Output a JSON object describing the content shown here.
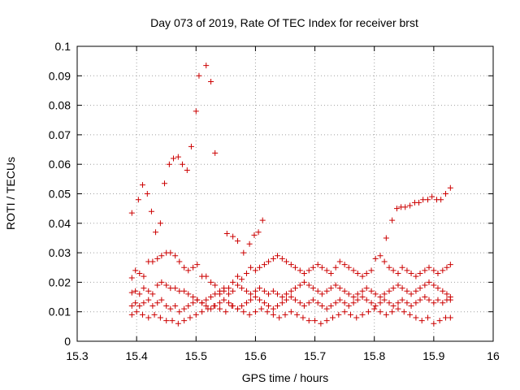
{
  "chart_data": {
    "type": "scatter",
    "title": "Day 073 of 2019, Rate Of TEC Index for receiver brst",
    "xlabel": "GPS time / hours",
    "ylabel": "ROTI / TECUs",
    "xlim": [
      15.3,
      16
    ],
    "ylim": [
      0,
      0.1
    ],
    "xticks": [
      "15.3",
      "15.4",
      "15.5",
      "15.6",
      "15.7",
      "15.8",
      "15.9",
      "16"
    ],
    "yticks": [
      "0",
      "0.01",
      "0.02",
      "0.03",
      "0.04",
      "0.05",
      "0.06",
      "0.07",
      "0.08",
      "0.09",
      "0.1"
    ],
    "grid": true,
    "marker": "plus",
    "color": "#cc0000",
    "series": [
      {
        "x": [
          15.392,
          15.403,
          15.41,
          15.418,
          15.425,
          15.432,
          15.44,
          15.447,
          15.455,
          15.462,
          15.47,
          15.477,
          15.485,
          15.492,
          15.5,
          15.505,
          15.517,
          15.525,
          15.532,
          15.552,
          15.562,
          15.57,
          15.58,
          15.59,
          15.598,
          15.605,
          15.612,
          15.82,
          15.83,
          15.838,
          15.845,
          15.852,
          15.86,
          15.868,
          15.875,
          15.882,
          15.89,
          15.897,
          15.905,
          15.912,
          15.92,
          15.928,
          15.392,
          15.398,
          15.405,
          15.412,
          15.42,
          15.427,
          15.435,
          15.442,
          15.45,
          15.457,
          15.465,
          15.472,
          15.48,
          15.487,
          15.495,
          15.502,
          15.51,
          15.517,
          15.525,
          15.532,
          15.54,
          15.547,
          15.555,
          15.562,
          15.57,
          15.577,
          15.585,
          15.592,
          15.6,
          15.607,
          15.615,
          15.622,
          15.63,
          15.637,
          15.645,
          15.652,
          15.66,
          15.667,
          15.675,
          15.682,
          15.69,
          15.697,
          15.705,
          15.712,
          15.72,
          15.727,
          15.735,
          15.742,
          15.75,
          15.757,
          15.765,
          15.772,
          15.78,
          15.787,
          15.795,
          15.802,
          15.81,
          15.817,
          15.825,
          15.832,
          15.84,
          15.847,
          15.855,
          15.862,
          15.87,
          15.877,
          15.885,
          15.892,
          15.9,
          15.907,
          15.915,
          15.922,
          15.928,
          15.392,
          15.398,
          15.405,
          15.412,
          15.42,
          15.427,
          15.435,
          15.442,
          15.45,
          15.457,
          15.465,
          15.472,
          15.48,
          15.487,
          15.495,
          15.502,
          15.51,
          15.517,
          15.525,
          15.532,
          15.54,
          15.547,
          15.555,
          15.562,
          15.57,
          15.577,
          15.585,
          15.592,
          15.6,
          15.607,
          15.615,
          15.622,
          15.63,
          15.637,
          15.645,
          15.652,
          15.66,
          15.667,
          15.675,
          15.682,
          15.69,
          15.697,
          15.705,
          15.712,
          15.72,
          15.727,
          15.735,
          15.742,
          15.75,
          15.757,
          15.765,
          15.772,
          15.78,
          15.787,
          15.795,
          15.802,
          15.81,
          15.817,
          15.825,
          15.832,
          15.84,
          15.847,
          15.855,
          15.862,
          15.87,
          15.877,
          15.885,
          15.892,
          15.9,
          15.907,
          15.915,
          15.922,
          15.928,
          15.392,
          15.398,
          15.405,
          15.412,
          15.42,
          15.427,
          15.435,
          15.442,
          15.45,
          15.457,
          15.465,
          15.472,
          15.48,
          15.487,
          15.495,
          15.502,
          15.51,
          15.517,
          15.525,
          15.532,
          15.54,
          15.547,
          15.555,
          15.562,
          15.57,
          15.577,
          15.585,
          15.592,
          15.6,
          15.607,
          15.615,
          15.622,
          15.63,
          15.637,
          15.645,
          15.652,
          15.66,
          15.667,
          15.675,
          15.682,
          15.69,
          15.697,
          15.705,
          15.712,
          15.72,
          15.727,
          15.735,
          15.742,
          15.75,
          15.757,
          15.765,
          15.772,
          15.78,
          15.787,
          15.795,
          15.802,
          15.81,
          15.817,
          15.825,
          15.832,
          15.84,
          15.847,
          15.855,
          15.862,
          15.87,
          15.877,
          15.885,
          15.892,
          15.9,
          15.907,
          15.915,
          15.922,
          15.928,
          15.392,
          15.4,
          15.41,
          15.42,
          15.43,
          15.44,
          15.45,
          15.46,
          15.47,
          15.48,
          15.49,
          15.5,
          15.51,
          15.52,
          15.53,
          15.54,
          15.55,
          15.56,
          15.57,
          15.58,
          15.59,
          15.6,
          15.61,
          15.62,
          15.63,
          15.64,
          15.65,
          15.66,
          15.67,
          15.68,
          15.69,
          15.7,
          15.71,
          15.72,
          15.73,
          15.74,
          15.75,
          15.76,
          15.77,
          15.78,
          15.79,
          15.8,
          15.81,
          15.82,
          15.83,
          15.84,
          15.85,
          15.86,
          15.87,
          15.88,
          15.89,
          15.9,
          15.91,
          15.92,
          15.928
        ],
        "y": [
          0.0435,
          0.048,
          0.053,
          0.05,
          0.044,
          0.037,
          0.04,
          0.0535,
          0.06,
          0.062,
          0.0625,
          0.06,
          0.058,
          0.066,
          0.078,
          0.09,
          0.0935,
          0.088,
          0.0638,
          0.0365,
          0.0355,
          0.034,
          0.03,
          0.033,
          0.036,
          0.037,
          0.041,
          0.035,
          0.041,
          0.045,
          0.0455,
          0.0455,
          0.046,
          0.047,
          0.047,
          0.048,
          0.048,
          0.049,
          0.048,
          0.048,
          0.05,
          0.052,
          0.0215,
          0.024,
          0.023,
          0.022,
          0.027,
          0.027,
          0.028,
          0.029,
          0.03,
          0.03,
          0.029,
          0.027,
          0.025,
          0.024,
          0.025,
          0.026,
          0.022,
          0.022,
          0.02,
          0.019,
          0.017,
          0.018,
          0.016,
          0.02,
          0.022,
          0.021,
          0.023,
          0.025,
          0.024,
          0.025,
          0.026,
          0.027,
          0.028,
          0.029,
          0.028,
          0.027,
          0.026,
          0.025,
          0.024,
          0.023,
          0.024,
          0.025,
          0.026,
          0.025,
          0.024,
          0.023,
          0.025,
          0.027,
          0.026,
          0.025,
          0.024,
          0.023,
          0.022,
          0.023,
          0.024,
          0.028,
          0.029,
          0.027,
          0.025,
          0.024,
          0.023,
          0.025,
          0.024,
          0.023,
          0.022,
          0.023,
          0.024,
          0.025,
          0.024,
          0.023,
          0.024,
          0.025,
          0.026,
          0.0165,
          0.017,
          0.016,
          0.018,
          0.017,
          0.016,
          0.019,
          0.02,
          0.019,
          0.018,
          0.018,
          0.017,
          0.017,
          0.016,
          0.015,
          0.014,
          0.013,
          0.014,
          0.015,
          0.016,
          0.016,
          0.017,
          0.018,
          0.017,
          0.019,
          0.018,
          0.017,
          0.016,
          0.017,
          0.018,
          0.017,
          0.016,
          0.017,
          0.016,
          0.015,
          0.016,
          0.017,
          0.018,
          0.019,
          0.02,
          0.019,
          0.018,
          0.017,
          0.016,
          0.017,
          0.018,
          0.019,
          0.018,
          0.017,
          0.016,
          0.015,
          0.016,
          0.017,
          0.018,
          0.017,
          0.016,
          0.015,
          0.016,
          0.017,
          0.018,
          0.019,
          0.018,
          0.017,
          0.016,
          0.017,
          0.018,
          0.019,
          0.02,
          0.019,
          0.018,
          0.017,
          0.016,
          0.015,
          0.012,
          0.013,
          0.012,
          0.013,
          0.014,
          0.012,
          0.013,
          0.014,
          0.012,
          0.011,
          0.012,
          0.01,
          0.011,
          0.012,
          0.013,
          0.014,
          0.013,
          0.012,
          0.011,
          0.012,
          0.013,
          0.014,
          0.013,
          0.012,
          0.011,
          0.012,
          0.013,
          0.014,
          0.015,
          0.014,
          0.013,
          0.012,
          0.011,
          0.012,
          0.013,
          0.014,
          0.015,
          0.014,
          0.013,
          0.012,
          0.013,
          0.014,
          0.013,
          0.012,
          0.011,
          0.012,
          0.013,
          0.014,
          0.013,
          0.012,
          0.013,
          0.014,
          0.015,
          0.014,
          0.013,
          0.012,
          0.013,
          0.014,
          0.013,
          0.012,
          0.013,
          0.014,
          0.013,
          0.012,
          0.013,
          0.014,
          0.015,
          0.014,
          0.013,
          0.014,
          0.013,
          0.014,
          0.014,
          0.009,
          0.01,
          0.009,
          0.008,
          0.009,
          0.008,
          0.007,
          0.007,
          0.006,
          0.007,
          0.008,
          0.009,
          0.01,
          0.011,
          0.012,
          0.011,
          0.01,
          0.012,
          0.011,
          0.01,
          0.009,
          0.01,
          0.011,
          0.01,
          0.009,
          0.008,
          0.009,
          0.01,
          0.009,
          0.008,
          0.007,
          0.007,
          0.006,
          0.007,
          0.008,
          0.009,
          0.01,
          0.009,
          0.008,
          0.009,
          0.01,
          0.011,
          0.01,
          0.009,
          0.01,
          0.011,
          0.01,
          0.009,
          0.008,
          0.007,
          0.008,
          0.006,
          0.007,
          0.008,
          0.008
        ]
      }
    ]
  }
}
